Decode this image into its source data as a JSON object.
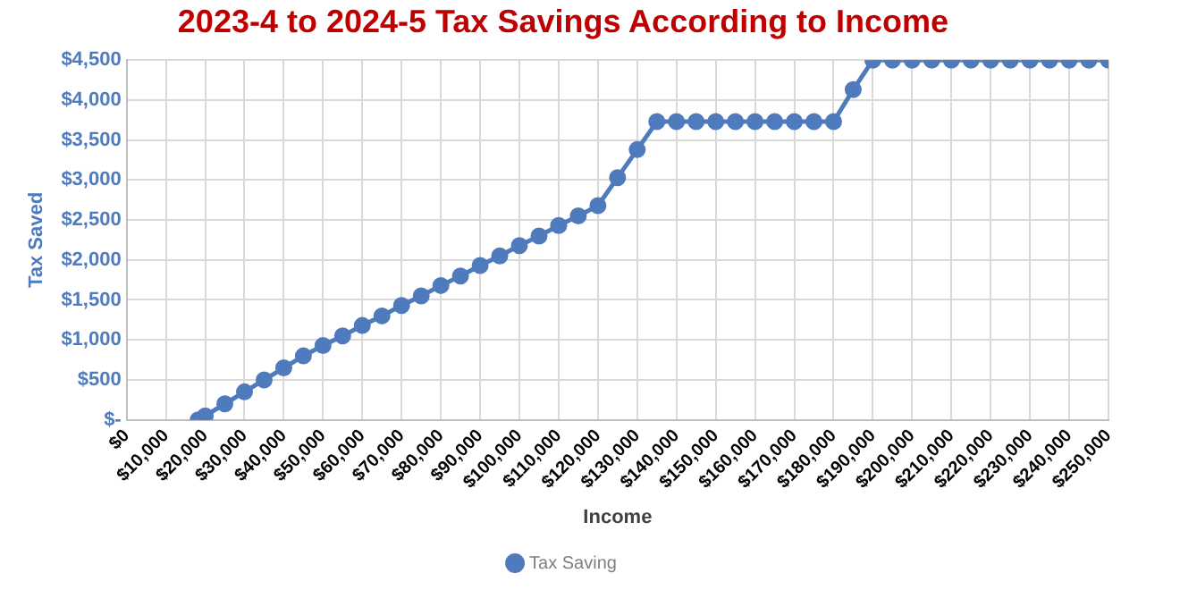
{
  "chart_data": {
    "type": "line",
    "title": "2023-4 to 2024-5 Tax Savings According to Income",
    "xlabel": "Income",
    "ylabel": "Tax Saved",
    "x": [
      18200,
      20000,
      25000,
      30000,
      35000,
      40000,
      45000,
      50000,
      55000,
      60000,
      65000,
      70000,
      75000,
      80000,
      85000,
      90000,
      95000,
      100000,
      105000,
      110000,
      115000,
      120000,
      125000,
      130000,
      135000,
      140000,
      145000,
      150000,
      155000,
      160000,
      165000,
      170000,
      175000,
      180000,
      185000,
      190000,
      195000,
      200000,
      205000,
      210000,
      215000,
      220000,
      225000,
      230000,
      235000,
      240000,
      245000,
      250000
    ],
    "series": [
      {
        "name": "Tax Saving",
        "color": "#4f7bbd",
        "values": [
          0,
          50,
          200,
          350,
          500,
          650,
          800,
          930,
          1050,
          1180,
          1300,
          1430,
          1550,
          1680,
          1800,
          1930,
          2050,
          2180,
          2300,
          2430,
          2550,
          2680,
          3030,
          3380,
          3730,
          3730,
          3730,
          3730,
          3730,
          3730,
          3730,
          3730,
          3730,
          3730,
          4130,
          4500,
          4500,
          4500,
          4500,
          4500,
          4500,
          4500,
          4500,
          4500,
          4500,
          4500,
          4500,
          4500
        ]
      }
    ],
    "xlim": [
      0,
      250000
    ],
    "xticks": [
      {
        "value": 0,
        "label": "$0"
      },
      {
        "value": 10000,
        "label": "$10,000"
      },
      {
        "value": 20000,
        "label": "$20,000"
      },
      {
        "value": 30000,
        "label": "$30,000"
      },
      {
        "value": 40000,
        "label": "$40,000"
      },
      {
        "value": 50000,
        "label": "$50,000"
      },
      {
        "value": 60000,
        "label": "$60,000"
      },
      {
        "value": 70000,
        "label": "$70,000"
      },
      {
        "value": 80000,
        "label": "$80,000"
      },
      {
        "value": 90000,
        "label": "$90,000"
      },
      {
        "value": 100000,
        "label": "$100,000"
      },
      {
        "value": 110000,
        "label": "$110,000"
      },
      {
        "value": 120000,
        "label": "$120,000"
      },
      {
        "value": 130000,
        "label": "$130,000"
      },
      {
        "value": 140000,
        "label": "$140,000"
      },
      {
        "value": 150000,
        "label": "$150,000"
      },
      {
        "value": 160000,
        "label": "$160,000"
      },
      {
        "value": 170000,
        "label": "$170,000"
      },
      {
        "value": 180000,
        "label": "$180,000"
      },
      {
        "value": 190000,
        "label": "$190,000"
      },
      {
        "value": 200000,
        "label": "$200,000"
      },
      {
        "value": 210000,
        "label": "$210,000"
      },
      {
        "value": 220000,
        "label": "$220,000"
      },
      {
        "value": 230000,
        "label": "$230,000"
      },
      {
        "value": 240000,
        "label": "$240,000"
      },
      {
        "value": 250000,
        "label": "$250,000"
      }
    ],
    "ylim": [
      0,
      4500
    ],
    "yticks": [
      {
        "value": 0,
        "label": "$-"
      },
      {
        "value": 500,
        "label": "$500"
      },
      {
        "value": 1000,
        "label": "$1,000"
      },
      {
        "value": 1500,
        "label": "$1,500"
      },
      {
        "value": 2000,
        "label": "$2,000"
      },
      {
        "value": 2500,
        "label": "$2,500"
      },
      {
        "value": 3000,
        "label": "$3,000"
      },
      {
        "value": 3500,
        "label": "$3,500"
      },
      {
        "value": 4000,
        "label": "$4,000"
      },
      {
        "value": 4500,
        "label": "$4,500"
      }
    ],
    "grid": true,
    "legend": "bottom",
    "marker": "circle",
    "line_style": "solid"
  }
}
